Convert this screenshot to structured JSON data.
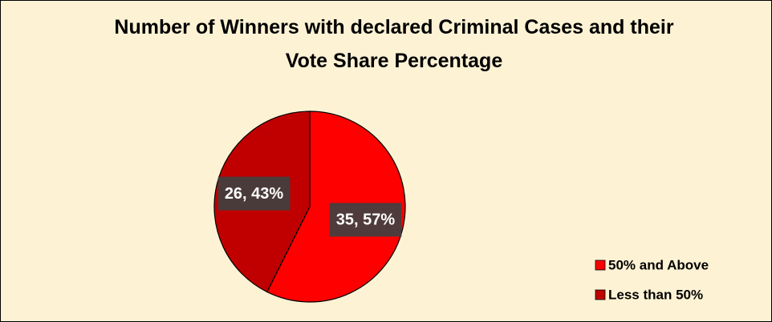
{
  "chart_data": {
    "type": "pie",
    "title": "Number of Winners with declared Criminal Cases and their Vote Share Percentage",
    "categories": [
      "50% and Above",
      "Less than 50%"
    ],
    "values": [
      35,
      26
    ],
    "value_labels": [
      "35, 57%",
      "26, 43%"
    ],
    "colors": [
      "#ff0000",
      "#c00000"
    ],
    "legend": "bottom-right"
  }
}
